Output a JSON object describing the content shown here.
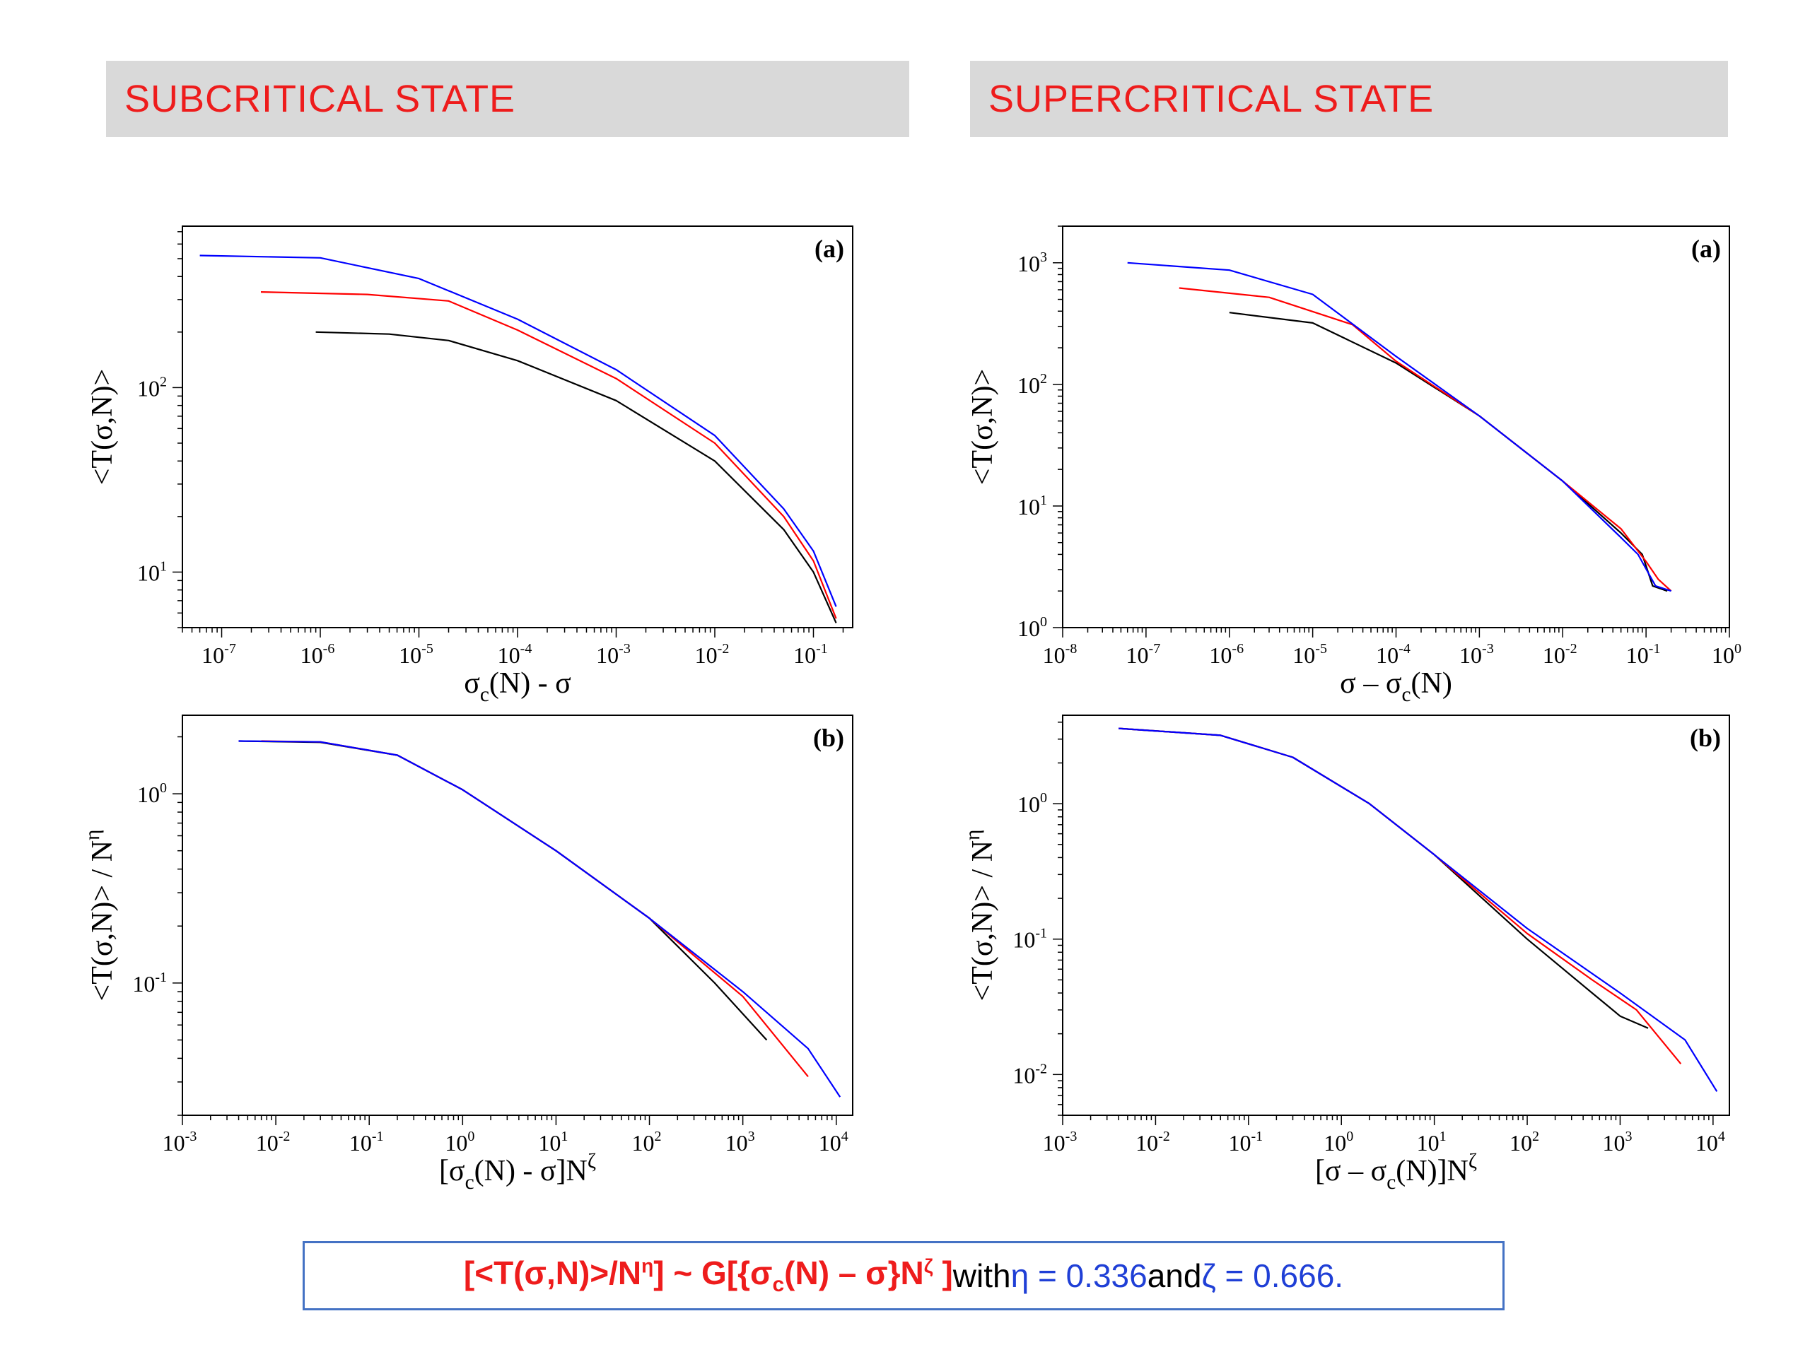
{
  "banners": {
    "left": "SUBCRITICAL  STATE",
    "right": "SUPERCRITICAL  STATE"
  },
  "formula": {
    "lhs_open": "[<T(σ,N)>/N",
    "lhs_eta_sup": "η",
    "lhs_close": "] ~ G[{σ",
    "sigma_sub": "c",
    "mid": "(N) – σ}N",
    "zeta_sup": "ζ",
    "rhs_close": " ]",
    "with": " with ",
    "eta_eq": "η = 0.336",
    "and": " and ",
    "zeta_eq": "ζ = 0.666."
  },
  "colors": {
    "banner_text": "#ee1c1c",
    "banner_bg": "#d9d9d9",
    "box_border": "#4472c4",
    "series_black": "#000000",
    "series_red": "#ff0000",
    "series_blue": "#0000ff"
  },
  "chart_data": [
    {
      "type": "line",
      "panel_label": "(a)",
      "xlabel": "σc(N) - σ",
      "ylabel": "<T(σ,N)>",
      "xscale": "log",
      "yscale": "log",
      "xlim": [
        4e-08,
        0.25
      ],
      "ylim": [
        5,
        750
      ],
      "xticks": [
        1e-07,
        1e-06,
        1e-05,
        0.0001,
        0.001,
        0.01,
        0.1
      ],
      "xtick_labels": [
        [
          "10",
          "-7"
        ],
        [
          "10",
          "-6"
        ],
        [
          "10",
          "-5"
        ],
        [
          "10",
          "-4"
        ],
        [
          "10",
          "-3"
        ],
        [
          "10",
          "-2"
        ],
        [
          "10",
          "-1"
        ]
      ],
      "yticks": [
        10,
        100
      ],
      "ytick_labels": [
        [
          "10",
          "1"
        ],
        [
          "10",
          "2"
        ]
      ],
      "series": [
        {
          "color": "#000000",
          "points": [
            [
              9e-07,
              200
            ],
            [
              5e-06,
              195
            ],
            [
              2e-05,
              180
            ],
            [
              0.0001,
              140
            ],
            [
              0.001,
              85
            ],
            [
              0.01,
              40
            ],
            [
              0.05,
              17
            ],
            [
              0.1,
              10
            ],
            [
              0.17,
              5.3
            ]
          ]
        },
        {
          "color": "#ff0000",
          "points": [
            [
              2.5e-07,
              330
            ],
            [
              3e-06,
              320
            ],
            [
              2e-05,
              295
            ],
            [
              0.0001,
              205
            ],
            [
              0.001,
              112
            ],
            [
              0.01,
              50
            ],
            [
              0.05,
              20
            ],
            [
              0.1,
              11.5
            ],
            [
              0.17,
              5.6
            ]
          ]
        },
        {
          "color": "#0000ff",
          "points": [
            [
              6e-08,
              520
            ],
            [
              1e-06,
              505
            ],
            [
              1e-05,
              390
            ],
            [
              0.0001,
              235
            ],
            [
              0.001,
              125
            ],
            [
              0.01,
              55
            ],
            [
              0.05,
              22
            ],
            [
              0.1,
              13
            ],
            [
              0.17,
              6.5
            ]
          ]
        }
      ]
    },
    {
      "type": "line",
      "panel_label": "(b)",
      "xlabel": "[σc(N) - σ]Nζ",
      "ylabel": "<T(σ,N)> / Nη",
      "xscale": "log",
      "yscale": "log",
      "xlim": [
        0.001,
        15000
      ],
      "ylim": [
        0.02,
        2.6
      ],
      "xticks": [
        0.001,
        0.01,
        0.1,
        1,
        10,
        100,
        1000,
        10000
      ],
      "xtick_labels": [
        [
          "10",
          "-3"
        ],
        [
          "10",
          "-2"
        ],
        [
          "10",
          "-1"
        ],
        [
          "10",
          "0"
        ],
        [
          "10",
          "1"
        ],
        [
          "10",
          "2"
        ],
        [
          "10",
          "3"
        ],
        [
          "10",
          "4"
        ]
      ],
      "yticks": [
        0.1,
        1
      ],
      "ytick_labels": [
        [
          "10",
          "-1"
        ],
        [
          "10",
          "0"
        ]
      ],
      "series": [
        {
          "color": "#000000",
          "points": [
            [
              0.004,
              1.9
            ],
            [
              0.03,
              1.87
            ],
            [
              0.2,
              1.6
            ],
            [
              1,
              1.05
            ],
            [
              10,
              0.5
            ],
            [
              100,
              0.22
            ],
            [
              500,
              0.1
            ],
            [
              1800,
              0.05
            ]
          ]
        },
        {
          "color": "#ff0000",
          "points": [
            [
              0.007,
              1.9
            ],
            [
              0.03,
              1.88
            ],
            [
              0.2,
              1.6
            ],
            [
              1,
              1.05
            ],
            [
              10,
              0.5
            ],
            [
              100,
              0.22
            ],
            [
              1000,
              0.085
            ],
            [
              5000,
              0.032
            ]
          ]
        },
        {
          "color": "#0000ff",
          "points": [
            [
              0.004,
              1.9
            ],
            [
              0.03,
              1.88
            ],
            [
              0.2,
              1.6
            ],
            [
              1,
              1.05
            ],
            [
              10,
              0.5
            ],
            [
              100,
              0.22
            ],
            [
              1000,
              0.09
            ],
            [
              5000,
              0.045
            ],
            [
              11000,
              0.025
            ]
          ]
        }
      ]
    },
    {
      "type": "line",
      "panel_label": "(a)",
      "xlabel": "σ – σc(N)",
      "ylabel": "<T(σ,N)>",
      "xscale": "log",
      "yscale": "log",
      "xlim": [
        1e-08,
        1
      ],
      "ylim": [
        1,
        2000
      ],
      "xticks": [
        1e-08,
        1e-07,
        1e-06,
        1e-05,
        0.0001,
        0.001,
        0.01,
        0.1,
        1
      ],
      "xtick_labels": [
        [
          "10",
          "-8"
        ],
        [
          "10",
          "-7"
        ],
        [
          "10",
          "-6"
        ],
        [
          "10",
          "-5"
        ],
        [
          "10",
          "-4"
        ],
        [
          "10",
          "-3"
        ],
        [
          "10",
          "-2"
        ],
        [
          "10",
          "-1"
        ],
        [
          "10",
          "0"
        ]
      ],
      "yticks": [
        1,
        10,
        100,
        1000
      ],
      "ytick_labels": [
        [
          "10",
          "0"
        ],
        [
          "10",
          "1"
        ],
        [
          "10",
          "2"
        ],
        [
          "10",
          "3"
        ]
      ],
      "series": [
        {
          "color": "#000000",
          "points": [
            [
              1e-06,
              390
            ],
            [
              1e-05,
              320
            ],
            [
              0.0001,
              150
            ],
            [
              0.001,
              55
            ],
            [
              0.01,
              16
            ],
            [
              0.05,
              6
            ],
            [
              0.09,
              4
            ],
            [
              0.12,
              2.2
            ],
            [
              0.18,
              2
            ]
          ]
        },
        {
          "color": "#ff0000",
          "points": [
            [
              2.5e-07,
              620
            ],
            [
              3e-06,
              520
            ],
            [
              3e-05,
              310
            ],
            [
              0.0001,
              155
            ],
            [
              0.001,
              55
            ],
            [
              0.01,
              16
            ],
            [
              0.05,
              6.5
            ],
            [
              0.1,
              3.5
            ],
            [
              0.14,
              2.5
            ],
            [
              0.2,
              2
            ]
          ]
        },
        {
          "color": "#0000ff",
          "points": [
            [
              6e-08,
              1000
            ],
            [
              1e-06,
              870
            ],
            [
              1e-05,
              550
            ],
            [
              0.0001,
              170
            ],
            [
              0.001,
              55
            ],
            [
              0.01,
              16
            ],
            [
              0.05,
              5.5
            ],
            [
              0.08,
              4
            ],
            [
              0.13,
              2.2
            ],
            [
              0.2,
              2
            ]
          ]
        }
      ]
    },
    {
      "type": "line",
      "panel_label": "(b)",
      "xlabel": "[σ – σc(N)]Nζ",
      "ylabel": "<T(σ,N)> / Nη",
      "xscale": "log",
      "yscale": "log",
      "xlim": [
        0.001,
        15000
      ],
      "ylim": [
        0.005,
        4.5
      ],
      "xticks": [
        0.001,
        0.01,
        0.1,
        1,
        10,
        100,
        1000,
        10000
      ],
      "xtick_labels": [
        [
          "10",
          "-3"
        ],
        [
          "10",
          "-2"
        ],
        [
          "10",
          "-1"
        ],
        [
          "10",
          "0"
        ],
        [
          "10",
          "1"
        ],
        [
          "10",
          "2"
        ],
        [
          "10",
          "3"
        ],
        [
          "10",
          "4"
        ]
      ],
      "yticks": [
        0.01,
        0.1,
        1
      ],
      "ytick_labels": [
        [
          "10",
          "-2"
        ],
        [
          "10",
          "-1"
        ],
        [
          "10",
          "0"
        ]
      ],
      "series": [
        {
          "color": "#000000",
          "points": [
            [
              0.004,
              3.6
            ],
            [
              0.05,
              3.2
            ],
            [
              0.3,
              2.2
            ],
            [
              2,
              1.0
            ],
            [
              10,
              0.42
            ],
            [
              100,
              0.1
            ],
            [
              500,
              0.04
            ],
            [
              1000,
              0.027
            ],
            [
              2000,
              0.022
            ]
          ]
        },
        {
          "color": "#ff0000",
          "points": [
            [
              0.004,
              3.6
            ],
            [
              0.05,
              3.2
            ],
            [
              0.3,
              2.2
            ],
            [
              2,
              1.0
            ],
            [
              10,
              0.42
            ],
            [
              100,
              0.11
            ],
            [
              500,
              0.05
            ],
            [
              1500,
              0.03
            ],
            [
              4500,
              0.012
            ]
          ]
        },
        {
          "color": "#0000ff",
          "points": [
            [
              0.004,
              3.6
            ],
            [
              0.05,
              3.2
            ],
            [
              0.3,
              2.2
            ],
            [
              2,
              1.0
            ],
            [
              10,
              0.42
            ],
            [
              100,
              0.12
            ],
            [
              1000,
              0.04
            ],
            [
              5000,
              0.018
            ],
            [
              11000,
              0.0075
            ]
          ]
        }
      ]
    }
  ]
}
